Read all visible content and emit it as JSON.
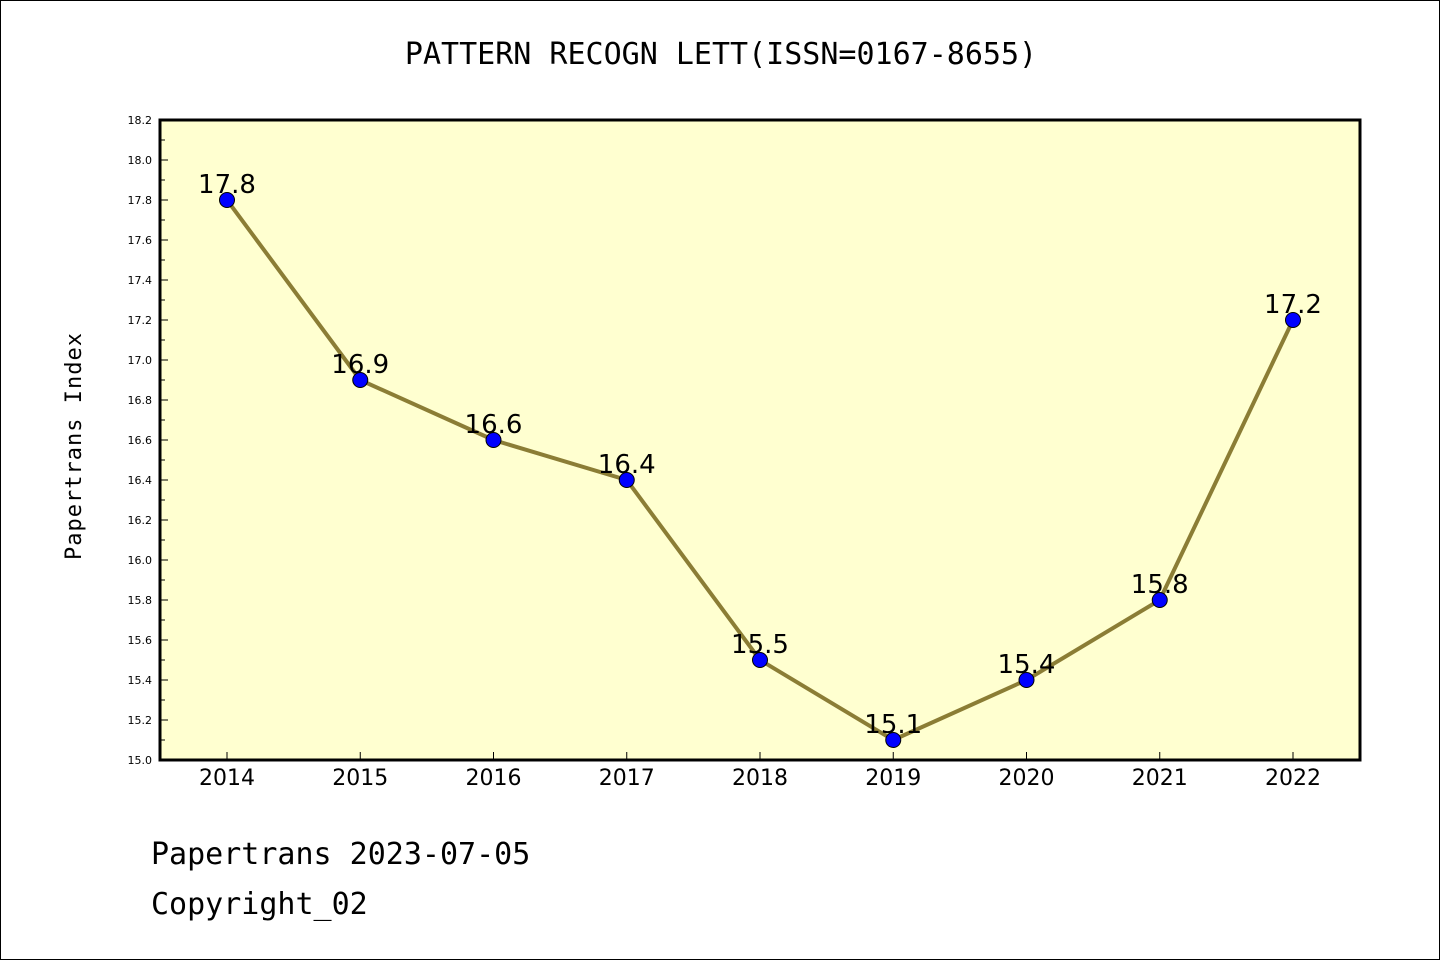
{
  "chart_data": {
    "type": "line",
    "title": "PATTERN RECOGN LETT(ISSN=0167-8655)",
    "xlabel": "",
    "ylabel": "Papertrans Index",
    "categories": [
      "2014",
      "2015",
      "2016",
      "2017",
      "2018",
      "2019",
      "2020",
      "2021",
      "2022"
    ],
    "series": [
      {
        "values": [
          17.8,
          16.9,
          16.6,
          16.4,
          15.5,
          15.1,
          15.4,
          15.8,
          17.2
        ]
      }
    ],
    "data_labels": [
      "17.8",
      "16.9",
      "16.6",
      "16.4",
      "15.5",
      "15.1",
      "15.4",
      "15.8",
      "17.2"
    ],
    "ylim": [
      15.0,
      18.2
    ],
    "yticks": [
      "15.0",
      "15.2",
      "15.4",
      "15.6",
      "15.8",
      "16.0",
      "16.2",
      "16.4",
      "16.6",
      "16.8",
      "17.0",
      "17.2",
      "17.4",
      "17.6",
      "17.8",
      "18.0",
      "18.2"
    ],
    "grid": false,
    "colors": {
      "plot_background": "#ffffd0",
      "line": "#8b7d35",
      "marker": "#0000ff"
    }
  },
  "footer": {
    "date_line": "Papertrans 2023-07-05",
    "copyright": "Copyright_02"
  }
}
